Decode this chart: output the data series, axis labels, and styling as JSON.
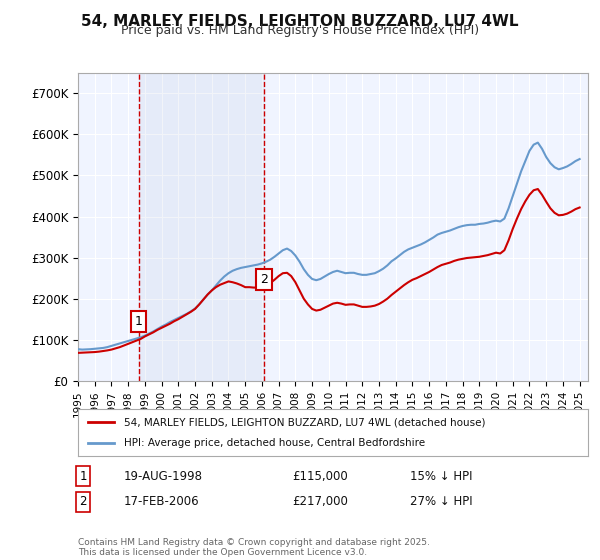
{
  "title": "54, MARLEY FIELDS, LEIGHTON BUZZARD, LU7 4WL",
  "subtitle": "Price paid vs. HM Land Registry's House Price Index (HPI)",
  "background_color": "#ffffff",
  "plot_bg_color": "#f0f4ff",
  "grid_color": "#ffffff",
  "ylabel_color": "#222222",
  "xlabel_color": "#222222",
  "ylim": [
    0,
    750000
  ],
  "xlim_start": 1995.0,
  "xlim_end": 2025.5,
  "yticks": [
    0,
    100000,
    200000,
    300000,
    400000,
    500000,
    600000,
    700000
  ],
  "ytick_labels": [
    "£0",
    "£100K",
    "£200K",
    "£300K",
    "£400K",
    "£500K",
    "£600K",
    "£700K"
  ],
  "xtick_years": [
    1995,
    1996,
    1997,
    1998,
    1999,
    2000,
    2001,
    2002,
    2003,
    2004,
    2005,
    2006,
    2007,
    2008,
    2009,
    2010,
    2011,
    2012,
    2013,
    2014,
    2015,
    2016,
    2017,
    2018,
    2019,
    2020,
    2021,
    2022,
    2023,
    2024,
    2025
  ],
  "sale1_date": 1998.63,
  "sale1_price": 115000,
  "sale1_label": "1",
  "sale2_date": 2006.12,
  "sale2_price": 217000,
  "sale2_label": "2",
  "sale1_annotation": "19-AUG-1998    £115,000    15% ↓ HPI",
  "sale2_annotation": "17-FEB-2006    £217,000    27% ↓ HPI",
  "red_line_color": "#cc0000",
  "blue_line_color": "#6699cc",
  "vline_color": "#cc0000",
  "legend1_label": "54, MARLEY FIELDS, LEIGHTON BUZZARD, LU7 4WL (detached house)",
  "legend2_label": "HPI: Average price, detached house, Central Bedfordshire",
  "footer_text": "Contains HM Land Registry data © Crown copyright and database right 2025.\nThis data is licensed under the Open Government Licence v3.0.",
  "hpi_data": {
    "years": [
      1995.0,
      1995.25,
      1995.5,
      1995.75,
      1996.0,
      1996.25,
      1996.5,
      1996.75,
      1997.0,
      1997.25,
      1997.5,
      1997.75,
      1998.0,
      1998.25,
      1998.5,
      1998.75,
      1999.0,
      1999.25,
      1999.5,
      1999.75,
      2000.0,
      2000.25,
      2000.5,
      2000.75,
      2001.0,
      2001.25,
      2001.5,
      2001.75,
      2002.0,
      2002.25,
      2002.5,
      2002.75,
      2003.0,
      2003.25,
      2003.5,
      2003.75,
      2004.0,
      2004.25,
      2004.5,
      2004.75,
      2005.0,
      2005.25,
      2005.5,
      2005.75,
      2006.0,
      2006.25,
      2006.5,
      2006.75,
      2007.0,
      2007.25,
      2007.5,
      2007.75,
      2008.0,
      2008.25,
      2008.5,
      2008.75,
      2009.0,
      2009.25,
      2009.5,
      2009.75,
      2010.0,
      2010.25,
      2010.5,
      2010.75,
      2011.0,
      2011.25,
      2011.5,
      2011.75,
      2012.0,
      2012.25,
      2012.5,
      2012.75,
      2013.0,
      2013.25,
      2013.5,
      2013.75,
      2014.0,
      2014.25,
      2014.5,
      2014.75,
      2015.0,
      2015.25,
      2015.5,
      2015.75,
      2016.0,
      2016.25,
      2016.5,
      2016.75,
      2017.0,
      2017.25,
      2017.5,
      2017.75,
      2018.0,
      2018.25,
      2018.5,
      2018.75,
      2019.0,
      2019.25,
      2019.5,
      2019.75,
      2020.0,
      2020.25,
      2020.5,
      2020.75,
      2021.0,
      2021.25,
      2021.5,
      2021.75,
      2022.0,
      2022.25,
      2022.5,
      2022.75,
      2023.0,
      2023.25,
      2023.5,
      2023.75,
      2024.0,
      2024.25,
      2024.5,
      2024.75,
      2025.0
    ],
    "values": [
      77000,
      76000,
      76500,
      77000,
      78000,
      79000,
      80000,
      82000,
      85000,
      88000,
      91000,
      94000,
      97000,
      100000,
      103000,
      106000,
      110000,
      115000,
      120000,
      126000,
      132000,
      137000,
      143000,
      148000,
      153000,
      158000,
      163000,
      169000,
      176000,
      186000,
      198000,
      210000,
      220000,
      232000,
      244000,
      254000,
      262000,
      268000,
      272000,
      275000,
      277000,
      279000,
      281000,
      283000,
      286000,
      290000,
      295000,
      302000,
      310000,
      318000,
      322000,
      316000,
      305000,
      290000,
      272000,
      258000,
      248000,
      245000,
      248000,
      254000,
      260000,
      265000,
      268000,
      265000,
      262000,
      263000,
      263000,
      260000,
      258000,
      258000,
      260000,
      262000,
      267000,
      273000,
      281000,
      291000,
      298000,
      306000,
      314000,
      320000,
      324000,
      328000,
      332000,
      337000,
      343000,
      349000,
      356000,
      360000,
      363000,
      366000,
      370000,
      374000,
      377000,
      379000,
      380000,
      380000,
      382000,
      383000,
      385000,
      388000,
      390000,
      388000,
      395000,
      420000,
      450000,
      480000,
      510000,
      535000,
      560000,
      575000,
      580000,
      565000,
      545000,
      530000,
      520000,
      515000,
      518000,
      522000,
      528000,
      535000,
      540000
    ]
  },
  "price_data": {
    "years": [
      1995.0,
      1995.25,
      1995.5,
      1995.75,
      1996.0,
      1996.25,
      1996.5,
      1996.75,
      1997.0,
      1997.25,
      1997.5,
      1997.75,
      1998.0,
      1998.25,
      1998.5,
      1998.75,
      1999.0,
      1999.25,
      1999.5,
      1999.75,
      2000.0,
      2000.25,
      2000.5,
      2000.75,
      2001.0,
      2001.25,
      2001.5,
      2001.75,
      2002.0,
      2002.25,
      2002.5,
      2002.75,
      2003.0,
      2003.25,
      2003.5,
      2003.75,
      2004.0,
      2004.25,
      2004.5,
      2004.75,
      2005.0,
      2005.25,
      2005.5,
      2005.75,
      2006.0,
      2006.25,
      2006.5,
      2006.75,
      2007.0,
      2007.25,
      2007.5,
      2007.75,
      2008.0,
      2008.25,
      2008.5,
      2008.75,
      2009.0,
      2009.25,
      2009.5,
      2009.75,
      2010.0,
      2010.25,
      2010.5,
      2010.75,
      2011.0,
      2011.25,
      2011.5,
      2011.75,
      2012.0,
      2012.25,
      2012.5,
      2012.75,
      2013.0,
      2013.25,
      2013.5,
      2013.75,
      2014.0,
      2014.25,
      2014.5,
      2014.75,
      2015.0,
      2015.25,
      2015.5,
      2015.75,
      2016.0,
      2016.25,
      2016.5,
      2016.75,
      2017.0,
      2017.25,
      2017.5,
      2017.75,
      2018.0,
      2018.25,
      2018.5,
      2018.75,
      2019.0,
      2019.25,
      2019.5,
      2019.75,
      2020.0,
      2020.25,
      2020.5,
      2020.75,
      2021.0,
      2021.25,
      2021.5,
      2021.75,
      2022.0,
      2022.25,
      2022.5,
      2022.75,
      2023.0,
      2023.25,
      2023.5,
      2023.75,
      2024.0,
      2024.25,
      2024.5,
      2024.75,
      2025.0
    ],
    "values": [
      68000,
      68500,
      69000,
      69500,
      70000,
      71000,
      72500,
      74000,
      76000,
      79000,
      82000,
      86000,
      90000,
      94000,
      98000,
      102000,
      108000,
      113000,
      118000,
      124000,
      129000,
      134000,
      139000,
      145000,
      150000,
      156000,
      162000,
      168000,
      175000,
      186000,
      198000,
      210000,
      220000,
      228000,
      234000,
      238000,
      242000,
      240000,
      237000,
      233000,
      228000,
      228000,
      227000,
      227000,
      228000,
      232000,
      238000,
      246000,
      255000,
      262000,
      263000,
      255000,
      240000,
      220000,
      200000,
      186000,
      175000,
      171000,
      173000,
      178000,
      183000,
      188000,
      190000,
      188000,
      185000,
      186000,
      186000,
      183000,
      180000,
      180000,
      181000,
      183000,
      187000,
      193000,
      200000,
      209000,
      217000,
      225000,
      233000,
      240000,
      246000,
      250000,
      255000,
      260000,
      265000,
      271000,
      277000,
      282000,
      285000,
      288000,
      292000,
      295000,
      297000,
      299000,
      300000,
      301000,
      302000,
      304000,
      306000,
      309000,
      312000,
      310000,
      318000,
      342000,
      370000,
      395000,
      418000,
      437000,
      453000,
      464000,
      467000,
      453000,
      436000,
      420000,
      409000,
      403000,
      404000,
      407000,
      412000,
      418000,
      422000
    ]
  }
}
